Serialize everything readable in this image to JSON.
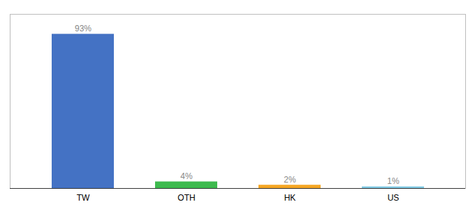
{
  "chart_data": {
    "type": "bar",
    "categories": [
      "TW",
      "OTH",
      "HK",
      "US"
    ],
    "values": [
      93,
      4,
      2,
      1
    ],
    "value_labels": [
      "93%",
      "4%",
      "2%",
      "1%"
    ],
    "colors": [
      "#4472c4",
      "#3dba4e",
      "#f5a623",
      "#7ec8e3"
    ],
    "ylim": [
      0,
      105
    ],
    "data_labels": true,
    "tick_labels": "x"
  }
}
